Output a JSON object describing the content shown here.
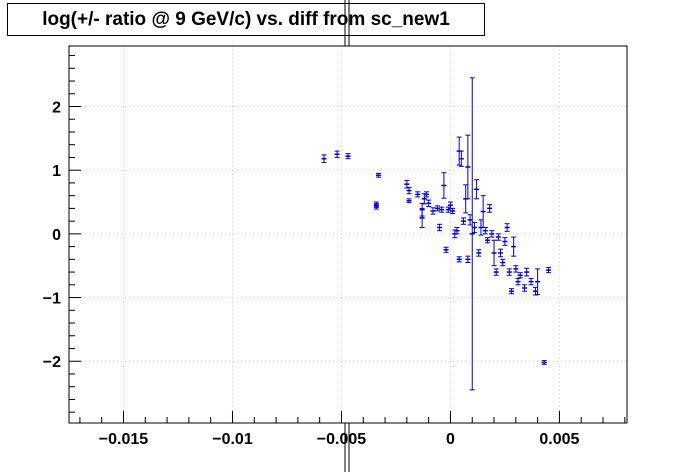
{
  "chart_data": {
    "type": "scatter",
    "title": "log(+/- ratio @ 9 GeV/c) vs. diff from sc_new1",
    "xlabel": "",
    "ylabel": "",
    "xlim": [
      -0.0175,
      0.0081
    ],
    "ylim": [
      -2.97,
      2.95
    ],
    "grid": true,
    "color": "#0000cc",
    "x_ticks": [
      {
        "value": -0.015,
        "label": "−0.015"
      },
      {
        "value": -0.01,
        "label": "−0.01"
      },
      {
        "value": -0.005,
        "label": "−0.005"
      },
      {
        "value": 0,
        "label": "0"
      },
      {
        "value": 0.005,
        "label": "0.005"
      }
    ],
    "y_ticks": [
      {
        "value": -2,
        "label": "−2"
      },
      {
        "value": -1,
        "label": "−1"
      },
      {
        "value": 0,
        "label": "0"
      },
      {
        "value": 1,
        "label": "1"
      },
      {
        "value": 2,
        "label": "2"
      }
    ],
    "points": [
      {
        "x": -0.0058,
        "y": 1.18,
        "err": 0.06
      },
      {
        "x": -0.0052,
        "y": 1.25,
        "err": 0.05
      },
      {
        "x": -0.0047,
        "y": 1.22,
        "err": 0.04
      },
      {
        "x": -0.0033,
        "y": 0.92,
        "err": 0.03
      },
      {
        "x": -0.0034,
        "y": 0.47,
        "err": 0.03
      },
      {
        "x": -0.0034,
        "y": 0.42,
        "err": 0.03
      },
      {
        "x": -0.002,
        "y": 0.78,
        "err": 0.06
      },
      {
        "x": -0.0019,
        "y": 0.68,
        "err": 0.05
      },
      {
        "x": -0.0019,
        "y": 0.52,
        "err": 0.03
      },
      {
        "x": -0.0015,
        "y": 0.62,
        "err": 0.04
      },
      {
        "x": -0.0013,
        "y": 0.25,
        "err": 0.15
      },
      {
        "x": -0.0013,
        "y": 0.38,
        "err": 0.1
      },
      {
        "x": -0.0012,
        "y": 0.55,
        "err": 0.08
      },
      {
        "x": -0.0011,
        "y": 0.62,
        "err": 0.04
      },
      {
        "x": -0.001,
        "y": 0.48,
        "err": 0.05
      },
      {
        "x": -0.0008,
        "y": 0.36,
        "err": 0.05
      },
      {
        "x": -0.0006,
        "y": 0.4,
        "err": 0.04
      },
      {
        "x": -0.0005,
        "y": 0.1,
        "err": 0.05
      },
      {
        "x": -0.0004,
        "y": 0.38,
        "err": 0.04
      },
      {
        "x": -0.0003,
        "y": 0.76,
        "err": 0.2
      },
      {
        "x": -0.0002,
        "y": -0.25,
        "err": 0.04
      },
      {
        "x": -0.0001,
        "y": 0.38,
        "err": 0.04
      },
      {
        "x": 0.0,
        "y": 0.45,
        "err": 0.05
      },
      {
        "x": 0.0001,
        "y": 0.36,
        "err": 0.04
      },
      {
        "x": 0.0002,
        "y": 0.0,
        "err": 0.06
      },
      {
        "x": 0.0003,
        "y": 0.05,
        "err": 0.05
      },
      {
        "x": 0.0004,
        "y": 1.3,
        "err": 0.22
      },
      {
        "x": 0.0004,
        "y": -0.4,
        "err": 0.04
      },
      {
        "x": 0.0005,
        "y": 1.18,
        "err": 0.12
      },
      {
        "x": 0.0006,
        "y": 0.2,
        "err": 0.05
      },
      {
        "x": 0.0007,
        "y": 0.55,
        "err": 0.22
      },
      {
        "x": 0.0008,
        "y": -0.4,
        "err": 0.05
      },
      {
        "x": 0.0008,
        "y": 1.05,
        "err": 0.5
      },
      {
        "x": 0.0009,
        "y": 0.22,
        "err": 0.08
      },
      {
        "x": 0.001,
        "y": 0.0,
        "err": 2.45
      },
      {
        "x": 0.0011,
        "y": 0.1,
        "err": 0.08
      },
      {
        "x": 0.0012,
        "y": 0.7,
        "err": 0.15
      },
      {
        "x": 0.0013,
        "y": -0.3,
        "err": 0.05
      },
      {
        "x": 0.0014,
        "y": 0.1,
        "err": 0.12
      },
      {
        "x": 0.0015,
        "y": 0.35,
        "err": 0.25
      },
      {
        "x": 0.0016,
        "y": 0.05,
        "err": 0.05
      },
      {
        "x": 0.0017,
        "y": -0.1,
        "err": 0.04
      },
      {
        "x": 0.0018,
        "y": 0.4,
        "err": 0.06
      },
      {
        "x": 0.0019,
        "y": 0.0,
        "err": 0.05
      },
      {
        "x": 0.002,
        "y": -0.3,
        "err": 0.2
      },
      {
        "x": 0.0021,
        "y": -0.6,
        "err": 0.05
      },
      {
        "x": 0.0022,
        "y": -0.05,
        "err": 0.05
      },
      {
        "x": 0.0023,
        "y": -0.3,
        "err": 0.06
      },
      {
        "x": 0.0024,
        "y": -0.45,
        "err": 0.05
      },
      {
        "x": 0.0025,
        "y": -0.12,
        "err": 0.06
      },
      {
        "x": 0.0026,
        "y": 0.1,
        "err": 0.06
      },
      {
        "x": 0.0027,
        "y": -0.6,
        "err": 0.05
      },
      {
        "x": 0.0028,
        "y": -0.9,
        "err": 0.04
      },
      {
        "x": 0.0029,
        "y": -0.2,
        "err": 0.15
      },
      {
        "x": 0.003,
        "y": -0.55,
        "err": 0.05
      },
      {
        "x": 0.0031,
        "y": -0.75,
        "err": 0.05
      },
      {
        "x": 0.0032,
        "y": -0.65,
        "err": 0.04
      },
      {
        "x": 0.0034,
        "y": -0.85,
        "err": 0.05
      },
      {
        "x": 0.0035,
        "y": -0.6,
        "err": 0.06
      },
      {
        "x": 0.0037,
        "y": -0.75,
        "err": 0.05
      },
      {
        "x": 0.0039,
        "y": -0.9,
        "err": 0.06
      },
      {
        "x": 0.004,
        "y": -0.75,
        "err": 0.2
      },
      {
        "x": 0.0043,
        "y": -2.02,
        "err": 0.03
      },
      {
        "x": 0.0045,
        "y": -0.57,
        "err": 0.04
      }
    ]
  }
}
